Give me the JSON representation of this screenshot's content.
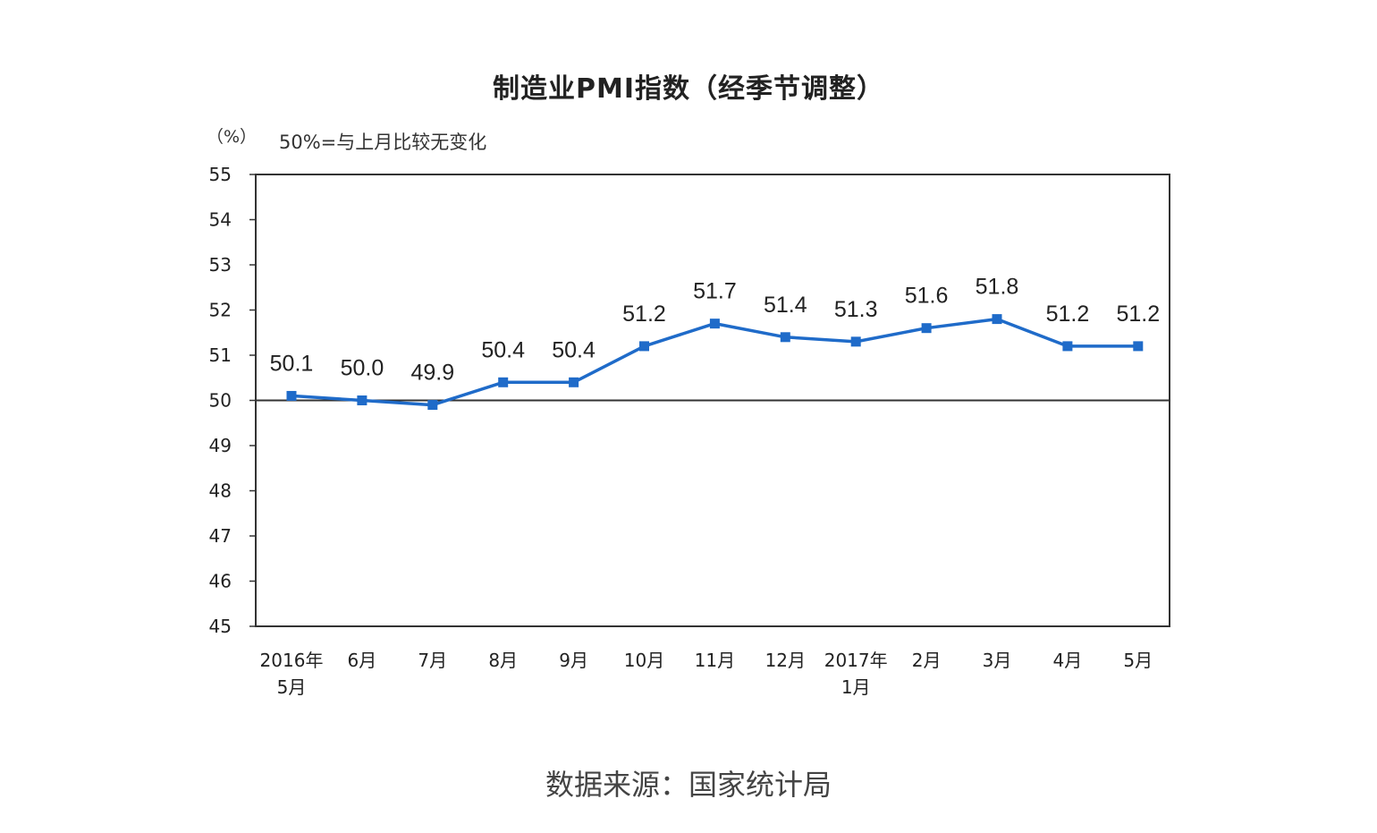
{
  "chart_data": {
    "type": "line",
    "title": "制造业PMI指数（经季节调整）",
    "unit": "（%）",
    "note": "50%=与上月比较无变化",
    "categories": [
      [
        "2016年",
        "5月"
      ],
      [
        "6月"
      ],
      [
        "7月"
      ],
      [
        "8月"
      ],
      [
        "9月"
      ],
      [
        "10月"
      ],
      [
        "11月"
      ],
      [
        "12月"
      ],
      [
        "2017年",
        "1月"
      ],
      [
        "2月"
      ],
      [
        "3月"
      ],
      [
        "4月"
      ],
      [
        "5月"
      ]
    ],
    "series": [
      {
        "values": [
          50.1,
          50.0,
          49.9,
          50.4,
          50.4,
          51.2,
          51.7,
          51.4,
          51.3,
          51.6,
          51.8,
          51.2,
          51.2
        ],
        "labels": [
          "50.1",
          "50.0",
          "49.9",
          "50.4",
          "50.4",
          "51.2",
          "51.7",
          "51.4",
          "51.3",
          "51.6",
          "51.8",
          "51.2",
          "51.2"
        ],
        "color": "#1F6BC9"
      }
    ],
    "ylim": [
      45,
      55
    ],
    "yticks": [
      55,
      54,
      53,
      52,
      51,
      50,
      49,
      48,
      47,
      46,
      45
    ],
    "reference_line": 50,
    "grid": false,
    "source": "数据来源：国家统计局"
  }
}
